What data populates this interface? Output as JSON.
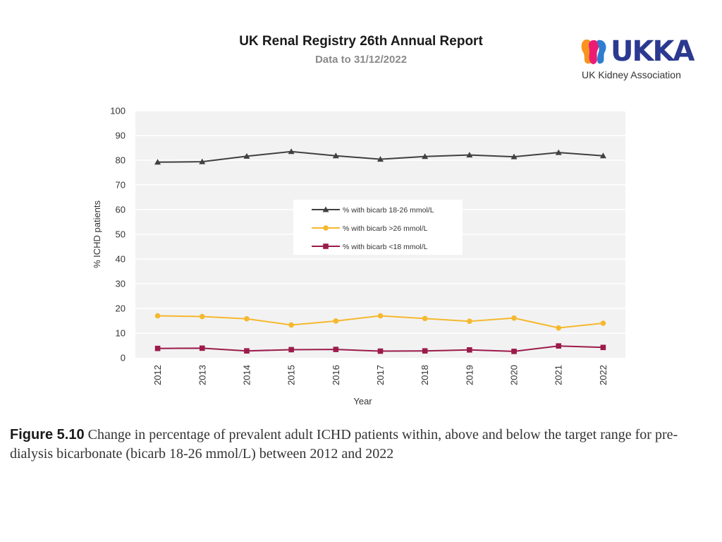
{
  "header": {
    "title": "UK Renal Registry 26th Annual Report",
    "subtitle": "Data to 31/12/2022"
  },
  "logo": {
    "wordmark": "UKKA",
    "name": "UK Kidney Association"
  },
  "caption": {
    "label": "Figure 5.10",
    "text": "Change in percentage of prevalent adult ICHD patients within, above and below the target range for pre-dialysis bicarbonate (bicarb 18-26 mmol/L) between 2012 and 2022"
  },
  "colors": {
    "series_mid": "#404040",
    "series_high": "#f5b82e",
    "series_low": "#9b1b4a",
    "plot_bg": "#f2f2f2",
    "logo_blue": "#2b3990"
  },
  "chart_data": {
    "type": "line",
    "title": "",
    "xlabel": "Year",
    "ylabel": "% ICHD patients",
    "ylim": [
      0,
      100
    ],
    "yticks": [
      0,
      10,
      20,
      30,
      40,
      50,
      60,
      70,
      80,
      90,
      100
    ],
    "grid": true,
    "legend_position": "center",
    "categories": [
      "2012",
      "2013",
      "2014",
      "2015",
      "2016",
      "2017",
      "2018",
      "2019",
      "2020",
      "2021",
      "2022"
    ],
    "series": [
      {
        "name": "% with bicarb 18-26 mmol/L",
        "marker": "triangle",
        "color": "#404040",
        "values": [
          79.2,
          79.4,
          81.6,
          83.5,
          81.8,
          80.4,
          81.5,
          82.1,
          81.4,
          83.1,
          81.8
        ]
      },
      {
        "name": "% with bicarb >26 mmol/L",
        "marker": "circle",
        "color": "#f5b82e",
        "values": [
          17.0,
          16.7,
          15.8,
          13.3,
          14.9,
          17.0,
          15.9,
          14.8,
          16.1,
          12.1,
          14.0
        ]
      },
      {
        "name": "% with bicarb <18 mmol/L",
        "marker": "square",
        "color": "#9b1b4a",
        "values": [
          3.8,
          3.9,
          2.8,
          3.3,
          3.4,
          2.7,
          2.8,
          3.2,
          2.6,
          4.8,
          4.2
        ]
      }
    ]
  }
}
